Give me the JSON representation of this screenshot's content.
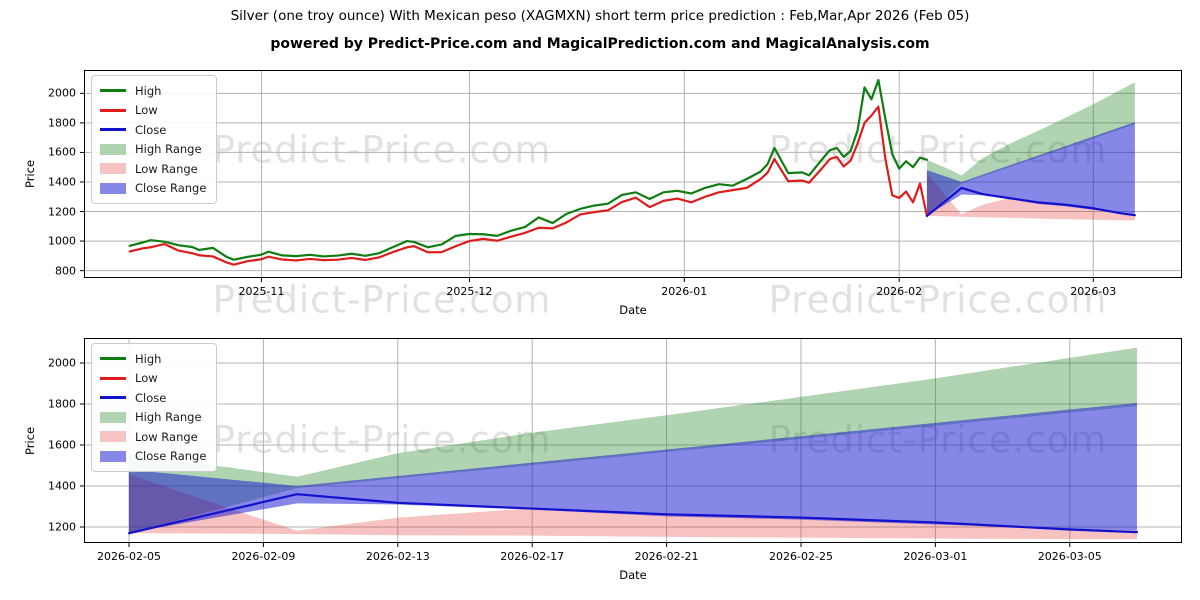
{
  "title": "Silver (one troy ounce) With Mexican peso (XAGMXN) short term price prediction : Feb,Mar,Apr 2026 (Feb 05)",
  "subtitle": "powered by Predict-Price.com and MagicalPrediction.com and MagicalAnalysis.com",
  "watermark_text": "Predict-Price.com",
  "colors": {
    "high_line": "#0f7d12",
    "low_line": "#dd1c1c",
    "close_line": "#1212cc",
    "high_range_fill": "rgba(16,125,18,0.33)",
    "low_range_fill": "rgba(221,28,28,0.27)",
    "close_range_fill": "rgba(15,15,208,0.5)",
    "grid": "#b3b3b3",
    "spine": "#000000"
  },
  "legend": [
    {
      "label": "High",
      "swatch": "line",
      "color_key": "high_line"
    },
    {
      "label": "Low",
      "swatch": "line",
      "color_key": "low_line"
    },
    {
      "label": "Close",
      "swatch": "line",
      "color_key": "close_line"
    },
    {
      "label": "High Range",
      "swatch": "patch",
      "color_key": "high_range_fill"
    },
    {
      "label": "Low Range",
      "swatch": "patch",
      "color_key": "low_range_fill"
    },
    {
      "label": "Close Range",
      "swatch": "patch",
      "color_key": "close_range_fill"
    }
  ],
  "chart_data": {
    "type": "line",
    "series_note": "x = days since 2025-10-13 for history, days since 2026-02-05 for forecast",
    "history": {
      "x": [
        0,
        2,
        3,
        5,
        7,
        9,
        10,
        12,
        14,
        15,
        17,
        19,
        20,
        22,
        24,
        26,
        28,
        30,
        32,
        34,
        36,
        38,
        40,
        41,
        43,
        45,
        47,
        49,
        51,
        53,
        55,
        57,
        59,
        61,
        63,
        65,
        67,
        69,
        71,
        73,
        75,
        77,
        79,
        81,
        83,
        85,
        87,
        89,
        91,
        92,
        93,
        95,
        97,
        98,
        100,
        101,
        102,
        103,
        104,
        105,
        106,
        107,
        108,
        109,
        110,
        111,
        112,
        113,
        114,
        115
      ],
      "high": [
        968,
        992,
        1006,
        996,
        972,
        960,
        940,
        954,
        892,
        874,
        893,
        908,
        928,
        903,
        898,
        907,
        896,
        902,
        914,
        900,
        918,
        960,
        1000,
        994,
        958,
        977,
        1035,
        1048,
        1046,
        1035,
        1070,
        1095,
        1160,
        1122,
        1184,
        1218,
        1240,
        1253,
        1312,
        1330,
        1285,
        1330,
        1340,
        1322,
        1360,
        1385,
        1375,
        1420,
        1470,
        1520,
        1630,
        1460,
        1465,
        1445,
        1560,
        1615,
        1630,
        1570,
        1610,
        1750,
        2040,
        1960,
        2090,
        1830,
        1590,
        1490,
        1540,
        1500,
        1565,
        1550
      ],
      "low": [
        930,
        952,
        958,
        980,
        936,
        918,
        904,
        896,
        855,
        840,
        864,
        877,
        894,
        875,
        869,
        879,
        871,
        874,
        886,
        872,
        890,
        926,
        958,
        966,
        924,
        925,
        965,
        1000,
        1015,
        1002,
        1030,
        1055,
        1090,
        1086,
        1126,
        1180,
        1196,
        1208,
        1264,
        1294,
        1230,
        1272,
        1288,
        1262,
        1300,
        1330,
        1345,
        1360,
        1420,
        1462,
        1555,
        1405,
        1410,
        1395,
        1500,
        1555,
        1570,
        1505,
        1545,
        1660,
        1800,
        1850,
        1910,
        1560,
        1310,
        1292,
        1335,
        1262,
        1390,
        1170
      ]
    },
    "forecast": {
      "x": [
        0,
        3,
        5,
        8,
        12,
        16,
        20,
        24,
        28,
        30
      ],
      "close": [
        1170,
        1284,
        1360,
        1318,
        1290,
        1262,
        1246,
        1222,
        1188,
        1175
      ],
      "high_upper": [
        1550,
        1490,
        1445,
        1560,
        1660,
        1745,
        1835,
        1925,
        2025,
        2075
      ],
      "high_lower": [
        1170,
        1302,
        1390,
        1438,
        1502,
        1566,
        1630,
        1694,
        1758,
        1790
      ],
      "close_upper": [
        1480,
        1432,
        1400,
        1449,
        1514,
        1578,
        1643,
        1708,
        1773,
        1805
      ],
      "close_lower": [
        1172,
        1258,
        1315,
        1310,
        1285,
        1252,
        1236,
        1212,
        1192,
        1183
      ],
      "low_upper": [
        1458,
        1290,
        1182,
        1245,
        1292,
        1262,
        1246,
        1224,
        1194,
        1183
      ],
      "low_lower": [
        1170,
        1168,
        1165,
        1160,
        1158,
        1152,
        1148,
        1144,
        1141,
        1140
      ]
    },
    "charts": [
      {
        "name": "history-and-forecast",
        "xlabel": "Date",
        "ylabel": "Price",
        "xlim": [
          -6.6,
          151.8
        ],
        "ylim": [
          750,
          2158
        ],
        "x_ticks": {
          "positions": [
            19,
            49,
            80,
            111,
            139
          ],
          "labels": [
            "2025-11",
            "2025-12",
            "2026-01",
            "2026-02",
            "2026-03"
          ]
        },
        "y_ticks": {
          "positions": [
            800,
            1000,
            1200,
            1400,
            1600,
            1800,
            2000
          ],
          "labels": [
            "800",
            "1000",
            "1200",
            "1400",
            "1600",
            "1800",
            "2000"
          ]
        },
        "grid": true,
        "legend_position": "upper-left",
        "show_history": true,
        "forecast_x_offset": 115
      },
      {
        "name": "forecast-detail",
        "xlabel": "Date",
        "ylabel": "Price",
        "xlim": [
          -1.34,
          31.34
        ],
        "ylim": [
          1122,
          2122
        ],
        "x_ticks": {
          "positions": [
            0,
            4,
            8,
            12,
            16,
            20,
            24,
            28
          ],
          "labels": [
            "2026-02-05",
            "2026-02-09",
            "2026-02-13",
            "2026-02-17",
            "2026-02-21",
            "2026-02-25",
            "2026-03-01",
            "2026-03-05"
          ]
        },
        "y_ticks": {
          "positions": [
            1200,
            1400,
            1600,
            1800,
            2000
          ],
          "labels": [
            "1200",
            "1400",
            "1600",
            "1800",
            "2000"
          ]
        },
        "grid": true,
        "legend_position": "upper-left",
        "show_history": false,
        "forecast_x_offset": 0
      }
    ]
  }
}
